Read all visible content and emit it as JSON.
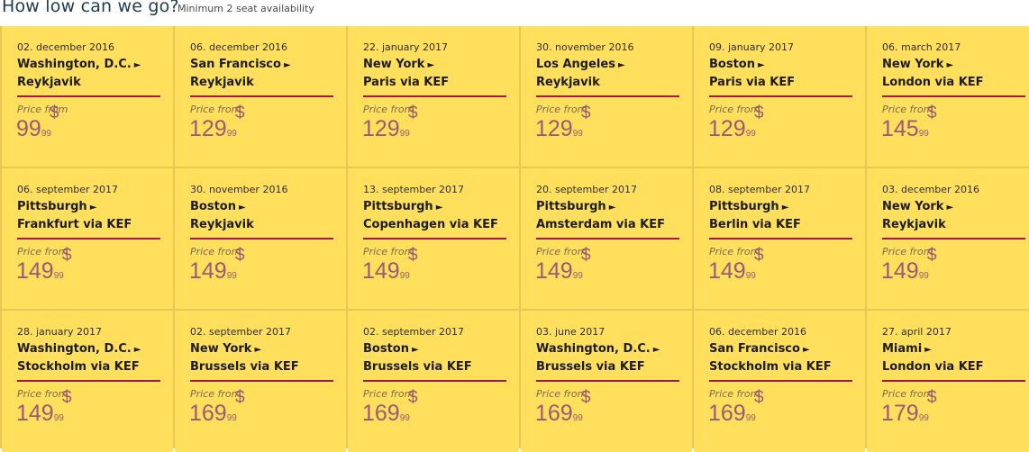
{
  "header": {
    "title": "How low can we go?",
    "subtitle": "Minimum 2 seat availability"
  },
  "price_label": "Price from",
  "currency": "$",
  "arrow_glyph": "►",
  "colors": {
    "card": "#ffdf5c",
    "rule": "#a3174a",
    "price": "#9c5a73"
  },
  "deals": [
    {
      "date": "02. december 2016",
      "from": "Washington, D.C.",
      "to": "Reykjavik",
      "price": "99",
      "cents": "99"
    },
    {
      "date": "06. december 2016",
      "from": "San Francisco",
      "to": "Reykjavik",
      "price": "129",
      "cents": "99"
    },
    {
      "date": "22. january 2017",
      "from": "New York",
      "to": "Paris via KEF",
      "price": "129",
      "cents": "99"
    },
    {
      "date": "30. november 2016",
      "from": "Los Angeles",
      "to": "Reykjavik",
      "price": "129",
      "cents": "99"
    },
    {
      "date": "09. january 2017",
      "from": "Boston",
      "to": "Paris via KEF",
      "price": "129",
      "cents": "99"
    },
    {
      "date": "06. march 2017",
      "from": "New York",
      "to": "London via KEF",
      "price": "145",
      "cents": "99"
    },
    {
      "date": "06. september 2017",
      "from": "Pittsburgh",
      "to": "Frankfurt via KEF",
      "price": "149",
      "cents": "99"
    },
    {
      "date": "30. november 2016",
      "from": "Boston",
      "to": "Reykjavik",
      "price": "149",
      "cents": "99"
    },
    {
      "date": "13. september 2017",
      "from": "Pittsburgh",
      "to": "Copenhagen via KEF",
      "price": "149",
      "cents": "99"
    },
    {
      "date": "20. september 2017",
      "from": "Pittsburgh",
      "to": "Amsterdam via KEF",
      "price": "149",
      "cents": "99"
    },
    {
      "date": "08. september 2017",
      "from": "Pittsburgh",
      "to": "Berlin via KEF",
      "price": "149",
      "cents": "99"
    },
    {
      "date": "03. december 2016",
      "from": "New York",
      "to": "Reykjavik",
      "price": "149",
      "cents": "99"
    },
    {
      "date": "28. january 2017",
      "from": "Washington, D.C.",
      "to": "Stockholm via KEF",
      "price": "149",
      "cents": "99"
    },
    {
      "date": "02. september 2017",
      "from": "New York",
      "to": "Brussels via KEF",
      "price": "169",
      "cents": "99"
    },
    {
      "date": "02. september 2017",
      "from": "Boston",
      "to": "Brussels via KEF",
      "price": "169",
      "cents": "99"
    },
    {
      "date": "03. june 2017",
      "from": "Washington, D.C.",
      "to": "Brussels via KEF",
      "price": "169",
      "cents": "99"
    },
    {
      "date": "06. december 2016",
      "from": "San Francisco",
      "to": "Stockholm via KEF",
      "price": "169",
      "cents": "99"
    },
    {
      "date": "27. april 2017",
      "from": "Miami",
      "to": "London via KEF",
      "price": "179",
      "cents": "99"
    }
  ]
}
